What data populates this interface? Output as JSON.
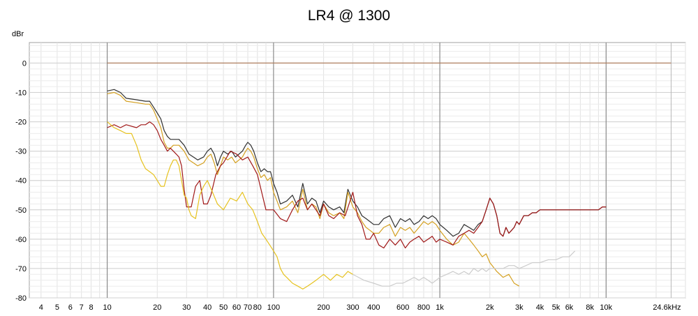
{
  "chart_data": {
    "type": "line",
    "title": "LR4 @ 1300",
    "ylabel": "dBr",
    "xlabel": "",
    "x_scale": "log",
    "xlim": [
      3.4,
      30000
    ],
    "ylim": [
      -80,
      7
    ],
    "grid": true,
    "x_tick_labels": [
      {
        "x": 4,
        "label": "4"
      },
      {
        "x": 5,
        "label": "5"
      },
      {
        "x": 6,
        "label": "6"
      },
      {
        "x": 7,
        "label": "7"
      },
      {
        "x": 8,
        "label": "8"
      },
      {
        "x": 10,
        "label": "10"
      },
      {
        "x": 20,
        "label": "20"
      },
      {
        "x": 30,
        "label": "30"
      },
      {
        "x": 40,
        "label": "40"
      },
      {
        "x": 50,
        "label": "50"
      },
      {
        "x": 60,
        "label": "60"
      },
      {
        "x": 70,
        "label": "70"
      },
      {
        "x": 80,
        "label": "80"
      },
      {
        "x": 100,
        "label": "100"
      },
      {
        "x": 200,
        "label": "200"
      },
      {
        "x": 300,
        "label": "300"
      },
      {
        "x": 400,
        "label": "400"
      },
      {
        "x": 600,
        "label": "600"
      },
      {
        "x": 800,
        "label": "800"
      },
      {
        "x": 1000,
        "label": "1k"
      },
      {
        "x": 2000,
        "label": "2k"
      },
      {
        "x": 3000,
        "label": "3k"
      },
      {
        "x": 4000,
        "label": "4k"
      },
      {
        "x": 5000,
        "label": "5k"
      },
      {
        "x": 6000,
        "label": "6k"
      },
      {
        "x": 8000,
        "label": "8k"
      },
      {
        "x": 10000,
        "label": "10k"
      },
      {
        "x": 24600,
        "label": "24.6kHz"
      }
    ],
    "y_tick_labels": [
      {
        "y": 0,
        "label": "0"
      },
      {
        "y": -10,
        "label": "-10"
      },
      {
        "y": -20,
        "label": "-20"
      },
      {
        "y": -30,
        "label": "-30"
      },
      {
        "y": -40,
        "label": "-40"
      },
      {
        "y": -50,
        "label": "-50"
      },
      {
        "y": -60,
        "label": "-60"
      },
      {
        "y": -70,
        "label": "-70"
      },
      {
        "y": -80,
        "label": "-80"
      }
    ],
    "series": [
      {
        "color": "#b08060",
        "x": [
          10,
          24600
        ],
        "y": [
          0,
          0
        ]
      },
      {
        "color": "#303030",
        "x": [
          10,
          11,
          12,
          13,
          15,
          17,
          18,
          19,
          20,
          21,
          22,
          23,
          24,
          25,
          27,
          29,
          31,
          33,
          35,
          38,
          40,
          42,
          44,
          46,
          48,
          50,
          53,
          56,
          59,
          62,
          65,
          68,
          70,
          73,
          76,
          80,
          84,
          88,
          92,
          96,
          100,
          105,
          110,
          120,
          130,
          140,
          150,
          160,
          170,
          180,
          190,
          200,
          215,
          230,
          250,
          265,
          280,
          300,
          320,
          340,
          360,
          380,
          400,
          430,
          460,
          500,
          540,
          580,
          620,
          660,
          700,
          750,
          800,
          850,
          900,
          950,
          1000,
          1100,
          1200,
          1300,
          1400,
          1500,
          1600,
          1700,
          1800,
          1900,
          2000,
          2100,
          2200,
          2300,
          2400,
          2500,
          2600,
          2700,
          2800,
          2900,
          3000,
          3200,
          3400,
          3600,
          3800,
          4000,
          4500,
          5000,
          5500,
          6000,
          6500,
          7000,
          7500,
          8000,
          8500,
          9000,
          9500,
          10000
        ],
        "y": [
          -9.5,
          -9,
          -10,
          -12,
          -12.5,
          -13,
          -13,
          -15,
          -17,
          -19,
          -23,
          -25,
          -26,
          -26,
          -26,
          -28,
          -31,
          -32,
          -33,
          -32,
          -30,
          -29,
          -31,
          -35,
          -32,
          -30,
          -31,
          -30,
          -32,
          -31,
          -30,
          -28,
          -27,
          -28,
          -30,
          -34,
          -37,
          -36,
          -37,
          -37,
          -41,
          -44,
          -48,
          -47,
          -45,
          -49,
          -41,
          -48,
          -46,
          -47,
          -51,
          -47,
          -49,
          -50,
          -49,
          -51,
          -43,
          -47,
          -49,
          -52,
          -53,
          -54,
          -55,
          -55,
          -53,
          -52,
          -56,
          -53,
          -54,
          -53,
          -55,
          -54,
          -52,
          -53,
          -52,
          -53,
          -55,
          -57,
          -59,
          -58,
          -55,
          -56,
          -57,
          -55,
          -54,
          -50,
          -46,
          -48,
          -52,
          -58,
          -59,
          -56,
          -58,
          -57,
          -56,
          -54,
          -55,
          -52,
          -52,
          -51,
          -51,
          -50,
          -50,
          -50,
          -50,
          -50,
          -50,
          -50,
          -50,
          -50,
          -50,
          -50,
          -49,
          -49
        ]
      },
      {
        "color": "#d4a020",
        "x": [
          10,
          11,
          12,
          13,
          15,
          17,
          18,
          19,
          20,
          21,
          22,
          23,
          24,
          25,
          27,
          29,
          31,
          33,
          35,
          38,
          40,
          42,
          44,
          46,
          48,
          50,
          53,
          56,
          59,
          62,
          65,
          68,
          70,
          73,
          76,
          80,
          84,
          88,
          92,
          96,
          100,
          105,
          110,
          120,
          130,
          140,
          150,
          160,
          170,
          180,
          190,
          200,
          215,
          230,
          250,
          265,
          280,
          300,
          320,
          340,
          360,
          380,
          400,
          430,
          460,
          500,
          540,
          580,
          620,
          660,
          700,
          750,
          800,
          850,
          900,
          950,
          1000,
          1100,
          1200,
          1300,
          1400,
          1500,
          1600,
          1700,
          1800,
          1900,
          2000,
          2200,
          2400,
          2600,
          2800,
          3000
        ],
        "y": [
          -10.5,
          -10,
          -11,
          -13,
          -13.5,
          -14,
          -14,
          -16,
          -19,
          -22,
          -27,
          -29,
          -29,
          -28,
          -28,
          -30,
          -33,
          -34,
          -35,
          -34,
          -32,
          -31,
          -34,
          -38,
          -35,
          -32,
          -33,
          -32,
          -34,
          -33,
          -32,
          -30,
          -29,
          -30,
          -32,
          -36,
          -39,
          -38,
          -40,
          -39,
          -44,
          -47,
          -50,
          -49,
          -47,
          -51,
          -43,
          -50,
          -48,
          -49,
          -53,
          -48,
          -51,
          -52,
          -51,
          -53,
          -44,
          -49,
          -51,
          -54,
          -56,
          -57,
          -58,
          -58,
          -56,
          -55,
          -59,
          -56,
          -57,
          -56,
          -58,
          -56,
          -54,
          -55,
          -54,
          -55,
          -57,
          -60,
          -62,
          -61,
          -58,
          -60,
          -62,
          -64,
          -66,
          -65,
          -68,
          -71,
          -73,
          -72,
          -75,
          -76
        ]
      },
      {
        "color": "#a01818",
        "x": [
          10,
          11,
          12,
          13,
          15,
          16,
          17,
          18,
          19,
          20,
          21,
          22,
          23,
          24,
          25,
          26,
          27,
          28,
          29,
          30,
          32,
          34,
          36,
          38,
          40,
          42,
          45,
          48,
          50,
          55,
          60,
          65,
          70,
          75,
          80,
          90,
          100,
          110,
          120,
          130,
          140,
          150,
          160,
          170,
          180,
          190,
          200,
          215,
          230,
          250,
          270,
          300,
          320,
          340,
          360,
          380,
          400,
          430,
          460,
          500,
          540,
          580,
          620,
          660,
          700,
          750,
          800,
          850,
          900,
          950,
          1000,
          1100,
          1200,
          1300,
          1400,
          1500,
          1600,
          1700,
          1800,
          1900,
          2000,
          2100,
          2200,
          2300,
          2400,
          2500,
          2600,
          2700,
          2800,
          2900,
          3000,
          3200,
          3400,
          3600,
          3800,
          4000,
          4500,
          5000,
          5500,
          6000,
          6500,
          7000,
          7500,
          8000,
          8500,
          9000,
          9500,
          10000
        ],
        "y": [
          -22,
          -21,
          -22,
          -21,
          -22,
          -21,
          -21,
          -20,
          -21,
          -23,
          -26,
          -28,
          -30,
          -29,
          -30,
          -31,
          -32,
          -35,
          -43,
          -49,
          -49,
          -42,
          -40,
          -48,
          -48,
          -45,
          -38,
          -35,
          -34,
          -30,
          -31,
          -33,
          -32,
          -35,
          -38,
          -50,
          -50,
          -53,
          -54,
          -50,
          -47,
          -46,
          -50,
          -48,
          -50,
          -52,
          -48,
          -52,
          -53,
          -51,
          -52,
          -44,
          -52,
          -55,
          -60,
          -60,
          -58,
          -62,
          -63,
          -60,
          -62,
          -60,
          -63,
          -61,
          -60,
          -59,
          -61,
          -60,
          -59,
          -61,
          -60,
          -61,
          -62,
          -59,
          -58,
          -57,
          -58,
          -56,
          -54,
          -50,
          -46,
          -48,
          -52,
          -58,
          -59,
          -56,
          -58,
          -57,
          -56,
          -54,
          -55,
          -52,
          -52,
          -51,
          -51,
          -50,
          -50,
          -50,
          -50,
          -50,
          -50,
          -50,
          -50,
          -50,
          -50,
          -50,
          -49,
          -49
        ]
      },
      {
        "color": "#e6c21e",
        "x": [
          10,
          11,
          12,
          13,
          14,
          15,
          16,
          17,
          18,
          19,
          20,
          21,
          22,
          23,
          24,
          25,
          26,
          27,
          28,
          29,
          30,
          31,
          32,
          34,
          36,
          38,
          40,
          43,
          46,
          50,
          55,
          60,
          65,
          70,
          75,
          80,
          85,
          90,
          95,
          100,
          105,
          110,
          115,
          120,
          125,
          130,
          140,
          150,
          160,
          170,
          180,
          200,
          220,
          240,
          260,
          280,
          300
        ],
        "y": [
          -20,
          -22,
          -23,
          -24,
          -24,
          -28,
          -33,
          -36,
          -37,
          -38,
          -40,
          -42,
          -42,
          -38,
          -35,
          -33,
          -33,
          -35,
          -40,
          -45,
          -46,
          -50,
          -52,
          -53,
          -45,
          -42,
          -40,
          -44,
          -48,
          -50,
          -46,
          -47,
          -44,
          -48,
          -50,
          -54,
          -58,
          -60,
          -62,
          -64,
          -66,
          -70,
          -72,
          -73,
          -74,
          -75,
          -76,
          -77,
          -76,
          -75,
          -74,
          -72,
          -74,
          -72,
          -73,
          -71,
          -72
        ]
      },
      {
        "color": "#cccccc",
        "x": [
          300,
          350,
          400,
          450,
          500,
          550,
          600,
          650,
          700,
          750,
          800,
          850,
          900,
          950,
          1000,
          1100,
          1200,
          1300,
          1400,
          1500,
          1600,
          1700,
          1800,
          1900,
          2000,
          2200,
          2400,
          2600,
          2800,
          3000,
          3300,
          3600,
          4000,
          4500,
          5000,
          5500,
          6000,
          6500
        ],
        "y": [
          -72,
          -74,
          -75,
          -76,
          -76,
          -75,
          -75,
          -74,
          -73,
          -74,
          -73,
          -74,
          -75,
          -74,
          -73,
          -72,
          -71,
          -72,
          -71,
          -72,
          -70,
          -71,
          -70,
          -71,
          -70,
          -70,
          -70,
          -69,
          -69,
          -70,
          -69,
          -68,
          -68,
          -67,
          -67,
          -66,
          -66,
          -64
        ]
      }
    ]
  }
}
